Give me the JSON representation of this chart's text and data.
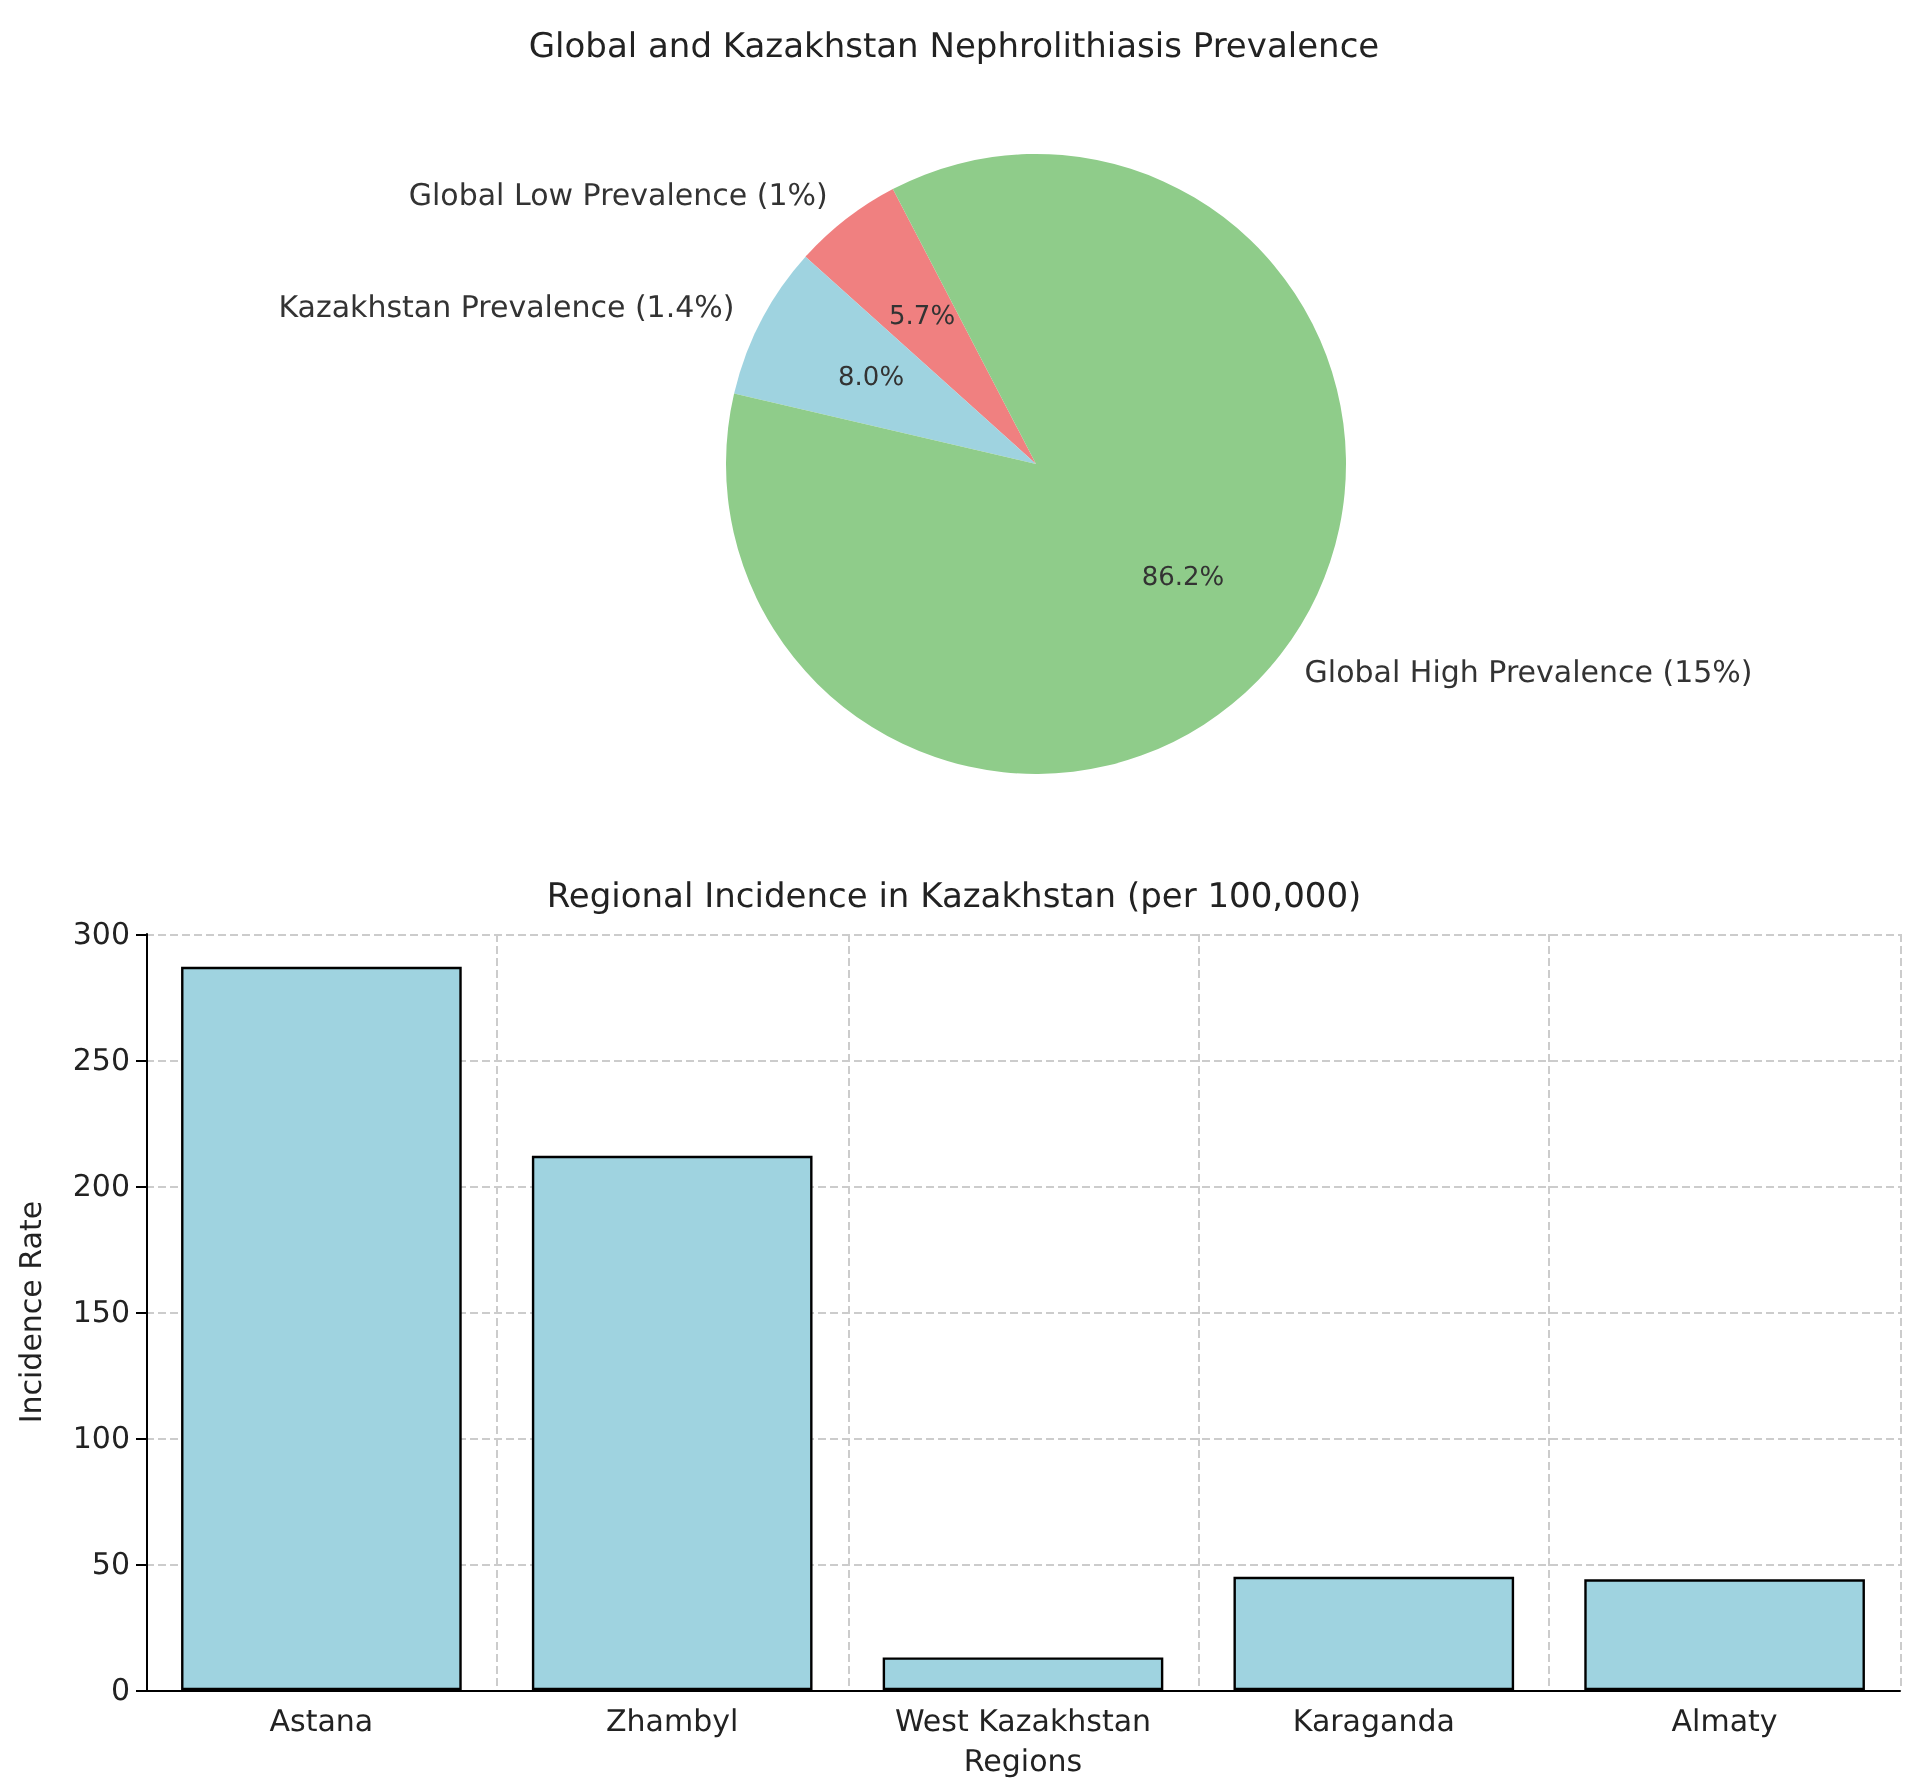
{
  "chart_data": [
    {
      "type": "pie",
      "title": "Global and Kazakhstan Nephrolithiasis Prevalence",
      "categories": [
        "Global Low Prevalence (1%)",
        "Kazakhstan Prevalence (1.4%)",
        "Global High Prevalence (15%)"
      ],
      "values": [
        5.7,
        8.0,
        86.2
      ],
      "value_labels": [
        "5.7%",
        "8.0%",
        "86.2%"
      ],
      "colors": [
        "#f08080",
        "#9fd3e0",
        "#8fcc8a"
      ]
    },
    {
      "type": "bar",
      "title": "Regional Incidence in Kazakhstan (per 100,000)",
      "xlabel": "Regions",
      "ylabel": "Incidence Rate",
      "categories": [
        "Astana",
        "Zhambyl",
        "West Kazakhstan",
        "Karaganda",
        "Almaty"
      ],
      "values": [
        287,
        212,
        13,
        45,
        44
      ],
      "color": "#9fd3e0",
      "ylim": [
        0,
        300
      ],
      "yticks": [
        0,
        50,
        100,
        150,
        200,
        250,
        300
      ],
      "grid": true
    }
  ]
}
